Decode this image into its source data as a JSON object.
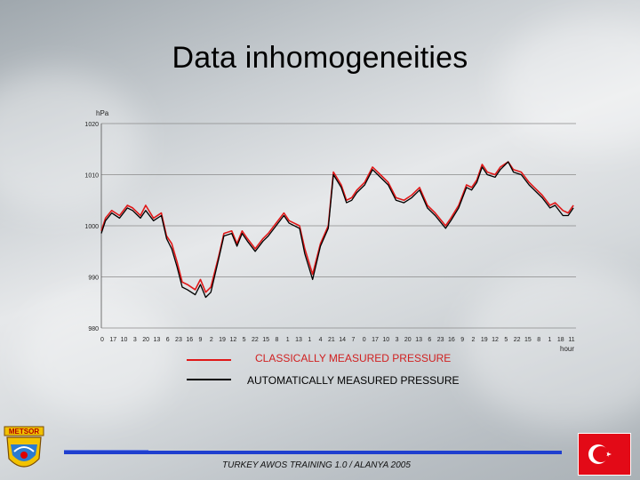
{
  "title": "Data inhomogeneities",
  "footer": "TURKEY AWOS TRAINING 1.0 / ALANYA 2005",
  "logo_text": "METSOR",
  "colors": {
    "classical": "#e01818",
    "automatic": "#000000",
    "accent": "#1f3fcf",
    "flag": "#e30a17"
  },
  "icons": {
    "logo": "metsor-logo-icon",
    "flag": "turkey-flag-icon"
  },
  "chart_data": {
    "type": "line",
    "ylabel": "hPa",
    "xlabel": "hour",
    "ylim": [
      980,
      1020
    ],
    "yticks": [
      "1020",
      "1010",
      "1000",
      "990",
      "980"
    ],
    "x_tick_labels": [
      "0",
      "17",
      "10",
      "3",
      "20",
      "13",
      "6",
      "23",
      "16",
      "9",
      "2",
      "19",
      "12",
      "5",
      "22",
      "15",
      "8",
      "1",
      "13",
      "1",
      "4",
      "21",
      "14",
      "7",
      "0",
      "17",
      "10",
      "3",
      "20",
      "13",
      "6",
      "23",
      "16",
      "9",
      "2",
      "19",
      "12",
      "5",
      "22",
      "15",
      "8",
      "1",
      "18",
      "11"
    ],
    "series": [
      {
        "name": "CLASSICALLY MEASURED PRESSURE",
        "color": "#e01818",
        "values": [
          999.0,
          1001.5,
          1003.0,
          1002.0,
          1004.0,
          1003.5,
          1002.0,
          1004.0,
          1001.5,
          1002.5,
          998.0,
          996.5,
          993.0,
          989.0,
          988.5,
          987.5,
          989.5,
          987.0,
          988.0,
          994.0,
          998.5,
          999.0,
          996.5,
          999.0,
          997.5,
          995.5,
          997.5,
          998.5,
          1000.5,
          1002.5,
          1001.0,
          1000.0,
          995.5,
          990.5,
          996.5,
          1000.0,
          1010.5,
          1008.0,
          1005.0,
          1005.5,
          1007.0,
          1008.5,
          1011.5,
          1010.0,
          1008.5,
          1005.5,
          1005.0,
          1006.0,
          1007.5,
          1004.0,
          1002.5,
          1000.0,
          1001.5,
          1004.0,
          1008.0,
          1007.5,
          1009.0,
          1012.0,
          1010.5,
          1010.0,
          1011.5,
          1012.5,
          1011.0,
          1010.5,
          1008.5,
          1007.5,
          1006.0,
          1004.0,
          1004.5,
          1003.0,
          1002.5,
          1004.0
        ],
        "x": [
          0,
          0.8,
          2,
          3.5,
          5,
          6,
          7.5,
          8.5,
          10,
          11.5,
          12.5,
          13.5,
          14.5,
          15.5,
          16.5,
          18,
          19,
          20,
          21,
          22.5,
          23.5,
          25,
          26,
          27,
          28,
          29.5,
          31,
          32,
          33.5,
          35,
          36,
          38,
          39,
          40.5,
          42,
          43.5,
          44.5,
          46,
          47,
          48,
          49,
          50.5,
          52,
          53.5,
          55,
          56.5,
          58,
          59.5,
          61,
          62.5,
          64,
          66,
          67,
          68.5,
          70,
          71,
          72,
          73,
          74,
          75.5,
          76.5,
          78,
          79,
          80.5,
          82,
          83,
          84.5,
          86,
          87,
          88.5,
          89.5,
          90.5
        ]
      },
      {
        "name": "AUTOMATICALLY MEASURED PRESSURE",
        "color": "#000000",
        "values": [
          998.5,
          1001.0,
          1002.5,
          1001.5,
          1003.5,
          1003.0,
          1001.5,
          1003.0,
          1001.0,
          1002.0,
          997.5,
          995.5,
          992.0,
          988.0,
          987.5,
          986.5,
          988.5,
          986.0,
          987.0,
          993.5,
          998.0,
          998.5,
          996.0,
          998.5,
          997.0,
          995.0,
          997.0,
          998.0,
          1000.0,
          1002.0,
          1000.5,
          999.5,
          994.5,
          989.5,
          996.0,
          999.5,
          1010.0,
          1007.5,
          1004.5,
          1005.0,
          1006.5,
          1008.0,
          1011.0,
          1009.5,
          1008.0,
          1005.0,
          1004.5,
          1005.5,
          1007.0,
          1003.5,
          1002.0,
          999.5,
          1001.0,
          1003.5,
          1007.5,
          1007.0,
          1008.5,
          1011.5,
          1010.0,
          1009.5,
          1011.0,
          1012.5,
          1010.5,
          1010.0,
          1008.0,
          1007.0,
          1005.5,
          1003.5,
          1004.0,
          1002.0,
          1002.0,
          1003.5
        ],
        "x": [
          0,
          0.8,
          2,
          3.5,
          5,
          6,
          7.5,
          8.5,
          10,
          11.5,
          12.5,
          13.5,
          14.5,
          15.5,
          16.5,
          18,
          19,
          20,
          21,
          22.5,
          23.5,
          25,
          26,
          27,
          28,
          29.5,
          31,
          32,
          33.5,
          35,
          36,
          38,
          39,
          40.5,
          42,
          43.5,
          44.5,
          46,
          47,
          48,
          49,
          50.5,
          52,
          53.5,
          55,
          56.5,
          58,
          59.5,
          61,
          62.5,
          64,
          66,
          67,
          68.5,
          70,
          71,
          72,
          73,
          74,
          75.5,
          76.5,
          78,
          79,
          80.5,
          82,
          83,
          84.5,
          86,
          87,
          88.5,
          89.5,
          90.5
        ]
      }
    ],
    "grid": "horizontal",
    "legend": "bottom"
  }
}
